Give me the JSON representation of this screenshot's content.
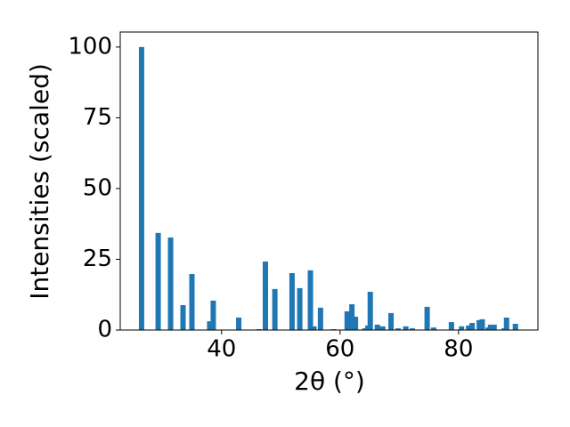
{
  "chart_data": {
    "type": "bar",
    "x_label": "2θ (°)",
    "y_label": "Intensities (scaled)",
    "color": "#1f77b4",
    "x": [
      26.5,
      29.3,
      31.4,
      33.5,
      35.0,
      38.0,
      38.6,
      42.9,
      46.3,
      47.4,
      49.0,
      51.9,
      53.2,
      55.0,
      55.6,
      56.7,
      58.9,
      61.2,
      62.0,
      62.6,
      64.2,
      64.7,
      65.1,
      66.3,
      67.2,
      68.6,
      69.8,
      71.1,
      72.2,
      74.7,
      75.8,
      78.8,
      80.5,
      81.7,
      82.3,
      83.5,
      84.0,
      85.0,
      85.4,
      86.0,
      87.7,
      88.1,
      89.6
    ],
    "values": [
      100,
      34.3,
      32.7,
      8.8,
      19.8,
      3.1,
      10.4,
      4.4,
      0.3,
      24.2,
      14.5,
      20.1,
      14.8,
      21.1,
      1.3,
      7.9,
      0.3,
      6.6,
      9.1,
      4.7,
      0.6,
      1.6,
      13.5,
      1.9,
      1.3,
      6.0,
      0.6,
      1.3,
      0.6,
      8.2,
      0.9,
      2.8,
      1.3,
      1.6,
      2.5,
      3.5,
      3.8,
      0.9,
      1.9,
      1.9,
      0.6,
      4.4,
      2.2
    ],
    "xlim": [
      22.9,
      93.4
    ],
    "ylim": [
      0,
      105.3
    ],
    "xticks": [
      40,
      60,
      80
    ],
    "yticks": [
      0,
      25,
      50,
      75,
      100
    ]
  }
}
